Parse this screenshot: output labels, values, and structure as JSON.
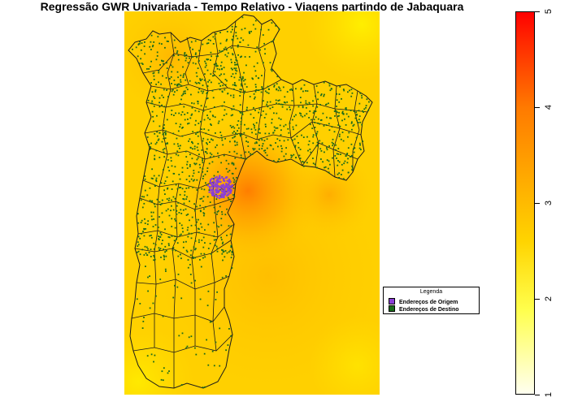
{
  "title": "Regressão GWR Univariada - Tempo Relativo - Viagens partindo de Jabaquara",
  "legend": {
    "title": "Legenda",
    "items": [
      {
        "label": "Endereços de Origem",
        "color": "#8b3fd6"
      },
      {
        "label": "Endereços de Destino",
        "color": "#1a6b1a"
      }
    ]
  },
  "colorbar": {
    "min": 1,
    "max": 5,
    "ticks": [
      "1",
      "2",
      "3",
      "4",
      "5"
    ],
    "colors": [
      "#fffff0",
      "#ffff4d",
      "#ffd400",
      "#ffae00",
      "#ff7a00",
      "#ff0000"
    ]
  },
  "map_colors": {
    "background_low": "#ffd200",
    "hotspot": "#ff7a00",
    "boundary": "#1a1a1a",
    "destination_points": "#1a6b1a",
    "origin_points": "#8b3fd6"
  }
}
